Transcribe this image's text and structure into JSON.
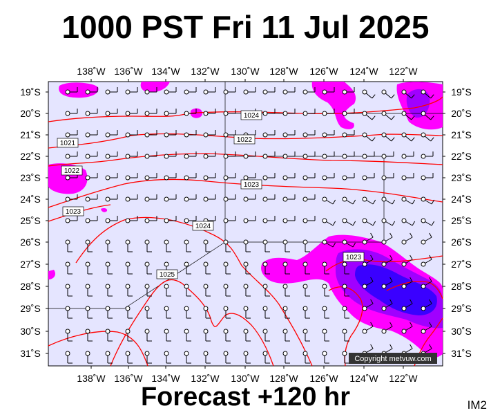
{
  "title": "1000 PST Fri 11 Jul 2025",
  "footer": "Forecast +120 hr",
  "image_code": "IM2",
  "copyright": "Copyright metvuw.com",
  "map": {
    "lon_labels": [
      "138˚W",
      "136˚W",
      "134˚W",
      "132˚W",
      "130˚W",
      "128˚W",
      "126˚W",
      "124˚W",
      "122˚W"
    ],
    "lat_labels": [
      "19˚S",
      "20˚S",
      "21˚S",
      "22˚S",
      "23˚S",
      "24˚S",
      "25˚S",
      "26˚S",
      "27˚S",
      "28˚S",
      "29˚S",
      "30˚S",
      "31˚S"
    ],
    "isobar_labels": [
      "1021",
      "1022",
      "1022",
      "1023",
      "1023",
      "1023",
      "1024",
      "1024",
      "1025"
    ],
    "colors": {
      "background": "#e5e5ff",
      "isobar": "#ff0000",
      "rain_light": "#ff00ff",
      "rain_medium": "#a000ff",
      "rain_heavy": "#3a00ff",
      "wind_barb": "#000000"
    }
  }
}
